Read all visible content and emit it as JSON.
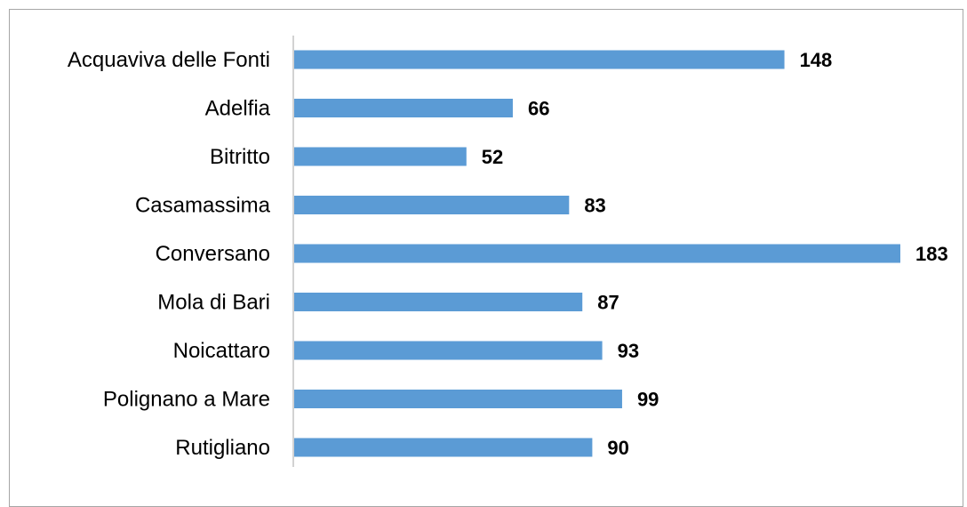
{
  "chart_data": {
    "type": "bar",
    "orientation": "horizontal",
    "categories": [
      "Acquaviva delle Fonti",
      "Adelfia",
      "Bitritto",
      "Casamassima",
      "Conversano",
      "Mola di Bari",
      "Noicattaro",
      "Polignano a Mare",
      "Rutigliano"
    ],
    "values": [
      148,
      66,
      52,
      83,
      183,
      87,
      93,
      99,
      90
    ],
    "xlim": [
      0,
      183
    ],
    "grid": false,
    "legend": "none",
    "bar_color": "#5b9bd5",
    "axis_color": "#a6a6a6",
    "data_labels": true
  }
}
